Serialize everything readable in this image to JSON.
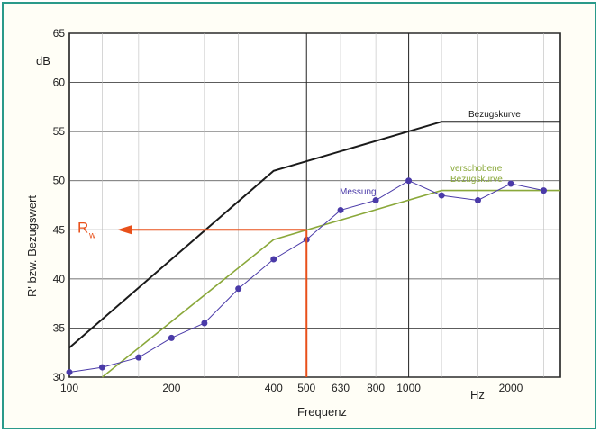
{
  "chart_data": {
    "type": "line",
    "xlabel": "Frequenz",
    "x_unit": "Hz",
    "ylabel": "R' bzw. Bezugswert",
    "y_unit": "dB",
    "x_scale": "log",
    "xlim": [
      100,
      2800
    ],
    "ylim": [
      30,
      65
    ],
    "x_ticks": [
      100,
      200,
      400,
      500,
      630,
      800,
      1000,
      2000
    ],
    "x_tick_labels": [
      "100",
      "200",
      "400",
      "500",
      "630",
      "800",
      "1000",
      "2000"
    ],
    "y_ticks": [
      30,
      35,
      40,
      45,
      50,
      55,
      60,
      65
    ],
    "grid": true,
    "series": [
      {
        "name": "Bezugskurve",
        "color": "#1a1a1a",
        "style": "line",
        "x": [
          100,
          400,
          1250,
          2800
        ],
        "y": [
          33,
          51,
          56,
          56
        ]
      },
      {
        "name": "verschobene Bezugskurve",
        "color": "#8aa83a",
        "style": "line",
        "x": [
          125,
          400,
          1250,
          2800
        ],
        "y": [
          30,
          44,
          49,
          49
        ]
      },
      {
        "name": "Messung",
        "color": "#4a3aa8",
        "style": "line+markers",
        "x": [
          100,
          125,
          160,
          200,
          250,
          315,
          400,
          500,
          630,
          800,
          1000,
          1250,
          1600,
          2000,
          2500
        ],
        "y": [
          30.5,
          31,
          32,
          34,
          35.5,
          39,
          42,
          44,
          47,
          48,
          50,
          48.5,
          48,
          49.7,
          49
        ]
      }
    ],
    "annotations": {
      "rw_label": "R",
      "rw_sub": "w",
      "rw_value": 45,
      "rw_frequency": 500,
      "rw_color": "#e8501a"
    }
  }
}
